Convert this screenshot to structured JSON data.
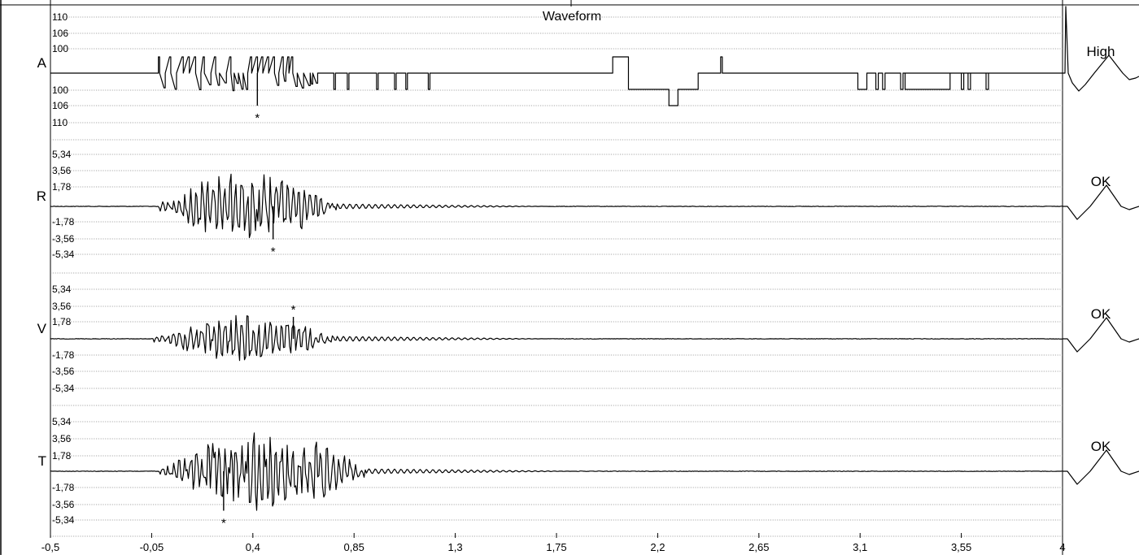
{
  "chart_data": {
    "type": "line",
    "title": "Waveform",
    "xlabel": "",
    "xlim": [
      -0.5,
      4.0
    ],
    "x_ticks": [
      "-0,5",
      "-0,05",
      "0,4",
      "0,85",
      "1,3",
      "1,75",
      "2,2",
      "2,65",
      "3,1",
      "3,55",
      "4"
    ],
    "grid": true,
    "channels": [
      {
        "name": "A",
        "tick_labels": [
          "110",
          "106",
          "100",
          "100",
          "106",
          "110"
        ],
        "status": "High",
        "marker": {
          "symbol": "*",
          "x": 0.42,
          "side": "below"
        },
        "description": "pulse train of sharp spikes between 0,0 and 1,2 s, step changes around 2,0–2,4 s and 3,1–3,6 s"
      },
      {
        "name": "R",
        "tick_labels": [
          "5,34",
          "3,56",
          "1,78",
          "-1,78",
          "-3,56",
          "-5,34"
        ],
        "ylim": [
          -5.34,
          5.34
        ],
        "status": "OK",
        "marker": {
          "symbol": "*",
          "x": 0.49,
          "side": "below"
        },
        "peak_amplitude": 3.0,
        "active_interval": [
          0.0,
          0.77
        ]
      },
      {
        "name": "V",
        "tick_labels": [
          "5,34",
          "3,56",
          "1,78",
          "-1,78",
          "-3,56",
          "-5,34"
        ],
        "ylim": [
          -5.34,
          5.34
        ],
        "status": "OK",
        "marker": {
          "symbol": "*",
          "x": 0.58,
          "side": "above"
        },
        "peak_amplitude": 2.0,
        "active_interval": [
          -0.02,
          0.77
        ]
      },
      {
        "name": "T",
        "tick_labels": [
          "5,34",
          "3,56",
          "1,78",
          "-1,78",
          "-3,56",
          "-5,34"
        ],
        "ylim": [
          -5.34,
          5.34
        ],
        "status": "OK",
        "marker": {
          "symbol": "*",
          "x": 0.27,
          "side": "below"
        },
        "peak_amplitude": 3.6,
        "active_interval": [
          0.0,
          0.9
        ]
      }
    ]
  }
}
